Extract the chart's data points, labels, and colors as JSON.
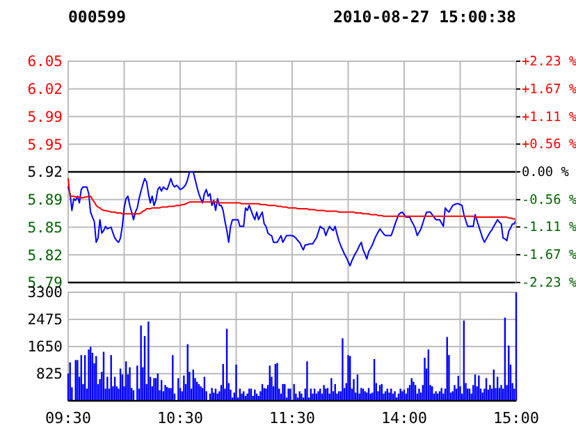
{
  "chart_data": [
    {
      "type": "line",
      "title": "000599",
      "subtitle": "2010-08-27 15:00:38",
      "categories": [
        null,
        null,
        null,
        null,
        null,
        null,
        null,
        null,
        null,
        null,
        null,
        null,
        null,
        null,
        null,
        null,
        null,
        null,
        null,
        null,
        null,
        null,
        null,
        null,
        null,
        null,
        null,
        null,
        null,
        null,
        null,
        null,
        null,
        null,
        null,
        null,
        null,
        null,
        null,
        null,
        null,
        null,
        null,
        null,
        null,
        null,
        null,
        null,
        null,
        null,
        null,
        null,
        null,
        null,
        null,
        null,
        null,
        null,
        null,
        null,
        null,
        null,
        null,
        null,
        null,
        null,
        null,
        null,
        null,
        null,
        null,
        null,
        null,
        null,
        null,
        null,
        null,
        null,
        null,
        null,
        null,
        null,
        null,
        null,
        null,
        null,
        null,
        null,
        null,
        null,
        null,
        null,
        null,
        null,
        null,
        null,
        null,
        null,
        null,
        null,
        null,
        null,
        null,
        null,
        null,
        null,
        null,
        null,
        null,
        null,
        null,
        null,
        null,
        null,
        null,
        null,
        null,
        null,
        null,
        null,
        null,
        null,
        null,
        null,
        null,
        null,
        null,
        null,
        null,
        null,
        null,
        null,
        null,
        null,
        null,
        null,
        null,
        null,
        null,
        null,
        null,
        null,
        null,
        null,
        null,
        null,
        null,
        null,
        null,
        null,
        null,
        null,
        null,
        null,
        null,
        null,
        null,
        null,
        null,
        null,
        null,
        null,
        null,
        null,
        null,
        null,
        null,
        null,
        null,
        null,
        null,
        null,
        null,
        null,
        null,
        null,
        null,
        null,
        null,
        null,
        null,
        null,
        null,
        null,
        null,
        null,
        null,
        null,
        null,
        null,
        null,
        null,
        null,
        null,
        null,
        null,
        null,
        null,
        null,
        null,
        null,
        null,
        null,
        null,
        null,
        null,
        null,
        null,
        null,
        null,
        null,
        null,
        null,
        null,
        null,
        null,
        null,
        null,
        null,
        null,
        null,
        null,
        null,
        null,
        null,
        null,
        null,
        null,
        null,
        null,
        null,
        null,
        null,
        null,
        null,
        null,
        null,
        null,
        null,
        null,
        null
      ],
      "ylim": [
        5.788,
        6.052
      ],
      "yticks": [
        {
          "value": 5.788,
          "label": "5.79"
        },
        {
          "value": 5.821,
          "label": "5.82"
        },
        {
          "value": 5.854,
          "label": "5.85"
        },
        {
          "value": 5.887,
          "label": "5.89"
        },
        5.92,
        {
          "value": 5.953,
          "label": "5.95"
        },
        {
          "value": 5.986,
          "label": "5.99"
        },
        {
          "value": 6.019,
          "label": "6.02"
        },
        {
          "value": 6.052,
          "label": "6.05"
        }
      ],
      "y2lim": [
        -2.23,
        2.23
      ],
      "y2ticks": [
        {
          "value": -2.23,
          "label": "-2.23 %"
        },
        {
          "value": -1.67,
          "label": "-1.67 %"
        },
        {
          "value": -1.11,
          "label": "-1.11 %"
        },
        {
          "value": -0.56,
          "label": "-0.56 %"
        },
        {
          "value": 0,
          "label": "0.00 %"
        },
        {
          "value": 0.56,
          "label": "+0.56 %"
        },
        {
          "value": 1.11,
          "label": "+1.11 %"
        },
        {
          "value": 1.67,
          "label": "+1.67 %"
        },
        {
          "value": 2.23,
          "label": "+2.23 %"
        }
      ],
      "tick_labels": "y",
      "grid": true,
      "ref_lines": [
        {
          "axis": "y",
          "value": 5.92,
          "color": "#000000"
        }
      ],
      "series": [
        {
          "color": "#0000ff",
          "values": [
            5.902,
            5.894,
            5.874,
            5.888,
            5.886,
            5.891,
            5.883,
            5.899,
            5.902,
            5.902,
            5.902,
            5.894,
            5.872,
            5.866,
            5.861,
            5.836,
            5.841,
            5.863,
            5.847,
            5.85,
            5.855,
            5.852,
            5.853,
            5.854,
            5.847,
            5.841,
            5.838,
            5.836,
            5.841,
            5.855,
            5.877,
            5.888,
            5.891,
            5.88,
            5.872,
            5.863,
            5.872,
            5.877,
            5.888,
            5.897,
            5.905,
            5.912,
            5.908,
            5.894,
            5.883,
            5.891,
            5.88,
            5.886,
            5.899,
            5.902,
            5.897,
            5.902,
            5.9,
            5.899,
            5.905,
            5.912,
            5.905,
            5.902,
            5.904,
            5.902,
            5.899,
            5.9,
            5.902,
            5.905,
            5.911,
            5.92,
            5.92,
            5.92,
            5.911,
            5.902,
            5.894,
            5.888,
            5.883,
            5.894,
            5.899,
            5.891,
            5.894,
            5.88,
            5.886,
            5.874,
            5.888,
            5.88,
            5.88,
            5.874,
            5.861,
            5.85,
            5.836,
            5.855,
            5.863,
            5.863,
            5.863,
            5.863,
            5.855,
            5.855,
            5.855,
            5.877,
            5.874,
            5.88,
            5.874,
            5.868,
            5.863,
            5.872,
            5.863,
            5.868,
            5.872,
            5.858,
            5.855,
            5.847,
            5.845,
            5.844,
            5.836,
            5.836,
            5.836,
            5.84,
            5.844,
            5.836,
            5.84,
            5.844,
            5.844,
            5.844,
            5.844,
            5.843,
            5.841,
            5.838,
            5.836,
            5.831,
            5.827,
            5.833,
            5.833,
            5.834,
            5.834,
            5.834,
            5.838,
            5.841,
            5.848,
            5.855,
            5.853,
            5.852,
            5.844,
            5.85,
            5.855,
            5.852,
            5.85,
            5.855,
            5.846,
            5.838,
            5.832,
            5.827,
            5.822,
            5.818,
            5.813,
            5.808,
            5.814,
            5.819,
            5.823,
            5.827,
            5.832,
            5.836,
            5.827,
            5.822,
            5.816,
            5.825,
            5.829,
            5.833,
            5.839,
            5.844,
            5.848,
            5.852,
            5.849,
            5.846,
            5.844,
            5.844,
            5.844,
            5.844,
            5.85,
            5.857,
            5.863,
            5.869,
            5.871,
            5.872,
            5.869,
            5.866,
            5.866,
            5.866,
            5.861,
            5.857,
            5.852,
            5.844,
            5.848,
            5.852,
            5.859,
            5.866,
            5.872,
            5.872,
            5.872,
            5.869,
            5.866,
            5.863,
            5.863,
            5.863,
            5.859,
            5.855,
            5.877,
            5.874,
            5.872,
            5.876,
            5.88,
            5.881,
            5.882,
            5.882,
            5.881,
            5.88,
            5.869,
            5.862,
            5.855,
            5.855,
            5.855,
            5.855,
            5.869,
            5.862,
            5.855,
            5.848,
            5.841,
            5.836,
            5.84,
            5.844,
            5.848,
            5.851,
            5.855,
            5.859,
            5.863,
            5.86,
            5.858,
            5.841,
            5.84,
            5.838,
            5.849,
            5.853,
            5.858,
            5.858,
            5.863
          ]
        },
        {
          "color": "#ff0000",
          "values": [
            5.912,
            5.891,
            5.891,
            5.891,
            5.89,
            5.89,
            5.89,
            5.889,
            5.889,
            5.89,
            5.89,
            5.891,
            5.891,
            5.887,
            5.884,
            5.88,
            5.878,
            5.877,
            5.875,
            5.874,
            5.874,
            5.873,
            5.873,
            5.872,
            5.872,
            5.872,
            5.871,
            5.871,
            5.871,
            5.87,
            5.87,
            5.87,
            5.87,
            5.87,
            5.87,
            5.87,
            5.87,
            5.87,
            5.87,
            5.871,
            5.873,
            5.874,
            5.876,
            5.876,
            5.876,
            5.877,
            5.877,
            5.877,
            5.877,
            5.877,
            5.878,
            5.878,
            5.878,
            5.878,
            5.879,
            5.879,
            5.879,
            5.879,
            5.88,
            5.88,
            5.88,
            5.881,
            5.881,
            5.882,
            5.883,
            5.884,
            5.884,
            5.884,
            5.884,
            5.884,
            5.884,
            5.884,
            5.884,
            5.884,
            5.884,
            5.884,
            5.884,
            5.884,
            5.884,
            5.884,
            5.884,
            5.883,
            5.883,
            5.883,
            5.883,
            5.883,
            5.883,
            5.883,
            5.883,
            5.883,
            5.883,
            5.883,
            5.883,
            5.882,
            5.882,
            5.882,
            5.882,
            5.882,
            5.882,
            5.882,
            5.882,
            5.882,
            5.882,
            5.881,
            5.881,
            5.881,
            5.881,
            5.88,
            5.88,
            5.88,
            5.88,
            5.88,
            5.879,
            5.879,
            5.879,
            5.878,
            5.878,
            5.878,
            5.877,
            5.877,
            5.877,
            5.877,
            5.877,
            5.876,
            5.876,
            5.876,
            5.876,
            5.876,
            5.876,
            5.875,
            5.875,
            5.875,
            5.875,
            5.874,
            5.874,
            5.874,
            5.874,
            5.874,
            5.873,
            5.873,
            5.873,
            5.873,
            5.873,
            5.873,
            5.873,
            5.872,
            5.872,
            5.872,
            5.872,
            5.872,
            5.872,
            5.872,
            5.872,
            5.872,
            5.871,
            5.871,
            5.871,
            5.871,
            5.87,
            5.87,
            5.87,
            5.87,
            5.869,
            5.869,
            5.869,
            5.869,
            5.868,
            5.868,
            5.868,
            5.867,
            5.867,
            5.867,
            5.867,
            5.867,
            5.867,
            5.867,
            5.867,
            5.867,
            5.867,
            5.867,
            5.867,
            5.867,
            5.867,
            5.867,
            5.867,
            5.867,
            5.867,
            5.867,
            5.867,
            5.867,
            5.867,
            5.867,
            5.867,
            5.867,
            5.867,
            5.867,
            5.867,
            5.867,
            5.867,
            5.867,
            5.867,
            5.867,
            5.867,
            5.867,
            5.867,
            5.867,
            5.867,
            5.867,
            5.867,
            5.867,
            5.867,
            5.867,
            5.867,
            5.867,
            5.867,
            5.867,
            5.867,
            5.867,
            5.866,
            5.866,
            5.866,
            5.866,
            5.866,
            5.866,
            5.866,
            5.866,
            5.866,
            5.866,
            5.866,
            5.866,
            5.866,
            5.866,
            5.866,
            5.866,
            5.866,
            5.866,
            5.865,
            5.865,
            5.864,
            5.864,
            5.863
          ]
        }
      ]
    },
    {
      "type": "bar",
      "color": "#0000ff",
      "categories": [
        "09:30",
        null,
        null,
        null,
        null,
        null,
        null,
        null,
        null,
        null,
        null,
        null,
        null,
        null,
        null,
        null,
        null,
        null,
        null,
        null,
        null,
        null,
        null,
        null,
        null,
        null,
        null,
        null,
        null,
        null,
        null,
        null,
        null,
        null,
        null,
        null,
        null,
        null,
        null,
        null,
        null,
        null,
        null,
        null,
        null,
        null,
        null,
        null,
        null,
        null,
        null,
        null,
        null,
        null,
        null,
        null,
        null,
        null,
        null,
        null,
        "10:30",
        null,
        null,
        null,
        null,
        null,
        null,
        null,
        null,
        null,
        null,
        null,
        null,
        null,
        null,
        null,
        null,
        null,
        null,
        null,
        null,
        null,
        null,
        null,
        null,
        null,
        null,
        null,
        null,
        null,
        null,
        null,
        null,
        null,
        null,
        null,
        null,
        null,
        null,
        null,
        null,
        null,
        null,
        null,
        null,
        null,
        null,
        null,
        null,
        null,
        null,
        null,
        null,
        null,
        null,
        null,
        null,
        null,
        null,
        null,
        "11:30",
        null,
        null,
        null,
        null,
        null,
        null,
        null,
        null,
        null,
        null,
        null,
        null,
        null,
        null,
        null,
        null,
        null,
        null,
        null,
        null,
        null,
        null,
        null,
        null,
        null,
        null,
        null,
        null,
        null,
        null,
        null,
        null,
        null,
        null,
        null,
        null,
        null,
        null,
        null,
        null,
        null,
        null,
        null,
        null,
        null,
        null,
        null,
        null,
        null,
        null,
        null,
        null,
        null,
        null,
        null,
        null,
        null,
        null,
        null,
        "14:00",
        null,
        null,
        null,
        null,
        null,
        null,
        null,
        null,
        null,
        null,
        null,
        null,
        null,
        null,
        null,
        null,
        null,
        null,
        null,
        null,
        null,
        null,
        null,
        null,
        null,
        null,
        null,
        null,
        null,
        null,
        null,
        null,
        null,
        null,
        null,
        null,
        null,
        null,
        null,
        null,
        null,
        null,
        null,
        null,
        null,
        null,
        null,
        null,
        null,
        null,
        null,
        null,
        null,
        null,
        null,
        null,
        null,
        null,
        null,
        "15:00"
      ],
      "ylim": [
        0,
        3300
      ],
      "yticks": [
        825,
        1650,
        2475,
        3300
      ],
      "grid": true,
      "values": [
        830,
        1170,
        410,
        null,
        1240,
        1240,
        730,
        1390,
        510,
        1390,
        370,
        1560,
        1640,
        1460,
        1140,
        1360,
        510,
        660,
        880,
        1490,
        370,
        730,
        370,
        1390,
        440,
        730,
        440,
        370,
        980,
        800,
        440,
        1200,
        800,
        1020,
        390,
        320,
        null,
        1070,
        370,
        2290,
        1020,
        1970,
        510,
        2410,
        730,
        440,
        690,
        690,
        830,
        320,
        630,
        290,
        480,
        420,
        390,
        390,
        1390,
        220,
        null,
        690,
        390,
        290,
        770,
        510,
        1720,
        880,
        370,
        950,
        690,
        580,
        510,
        440,
        390,
        730,
        290,
        null,
        220,
        390,
        250,
        370,
        220,
        290,
        480,
        1120,
        370,
        2190,
        540,
        340,
        100,
        250,
        1100,
        100,
        370,
        220,
        290,
        150,
        220,
        370,
        370,
        150,
        340,
        220,
        150,
        290,
        510,
        390,
        370,
        480,
        1070,
        730,
        440,
        1120,
        1150,
        370,
        220,
        510,
        510,
        100,
        370,
        370,
        null,
        510,
        220,
        100,
        290,
        220,
        100,
        370,
        1200,
        100,
        370,
        220,
        370,
        220,
        290,
        370,
        220,
        480,
        370,
        390,
        220,
        690,
        290,
        510,
        220,
        290,
        290,
        1900,
        390,
        540,
        1390,
        1360,
        370,
        660,
        250,
        800,
        220,
        390,
        370,
        290,
        250,
        390,
        220,
        250,
        1270,
        540,
        290,
        480,
        510,
        220,
        290,
        370,
        250,
        370,
        220,
        290,
        100,
        220,
        370,
        290,
        340,
        220,
        390,
        480,
        690,
        580,
        480,
        220,
        370,
        250,
        480,
        1310,
        980,
        1560,
        480,
        440,
        220,
        290,
        220,
        290,
        390,
        220,
        370,
        1940,
        1390,
        250,
        290,
        480,
        370,
        760,
        440,
        220,
        2440,
        540,
        370,
        370,
        220,
        480,
        800,
        440,
        770,
        370,
        250,
        370,
        690,
        340,
        480,
        370,
        950,
        390,
        730,
        390,
        480,
        370,
        2530,
        480,
        1680,
        1100,
        540,
        370,
        3300
      ]
    }
  ]
}
